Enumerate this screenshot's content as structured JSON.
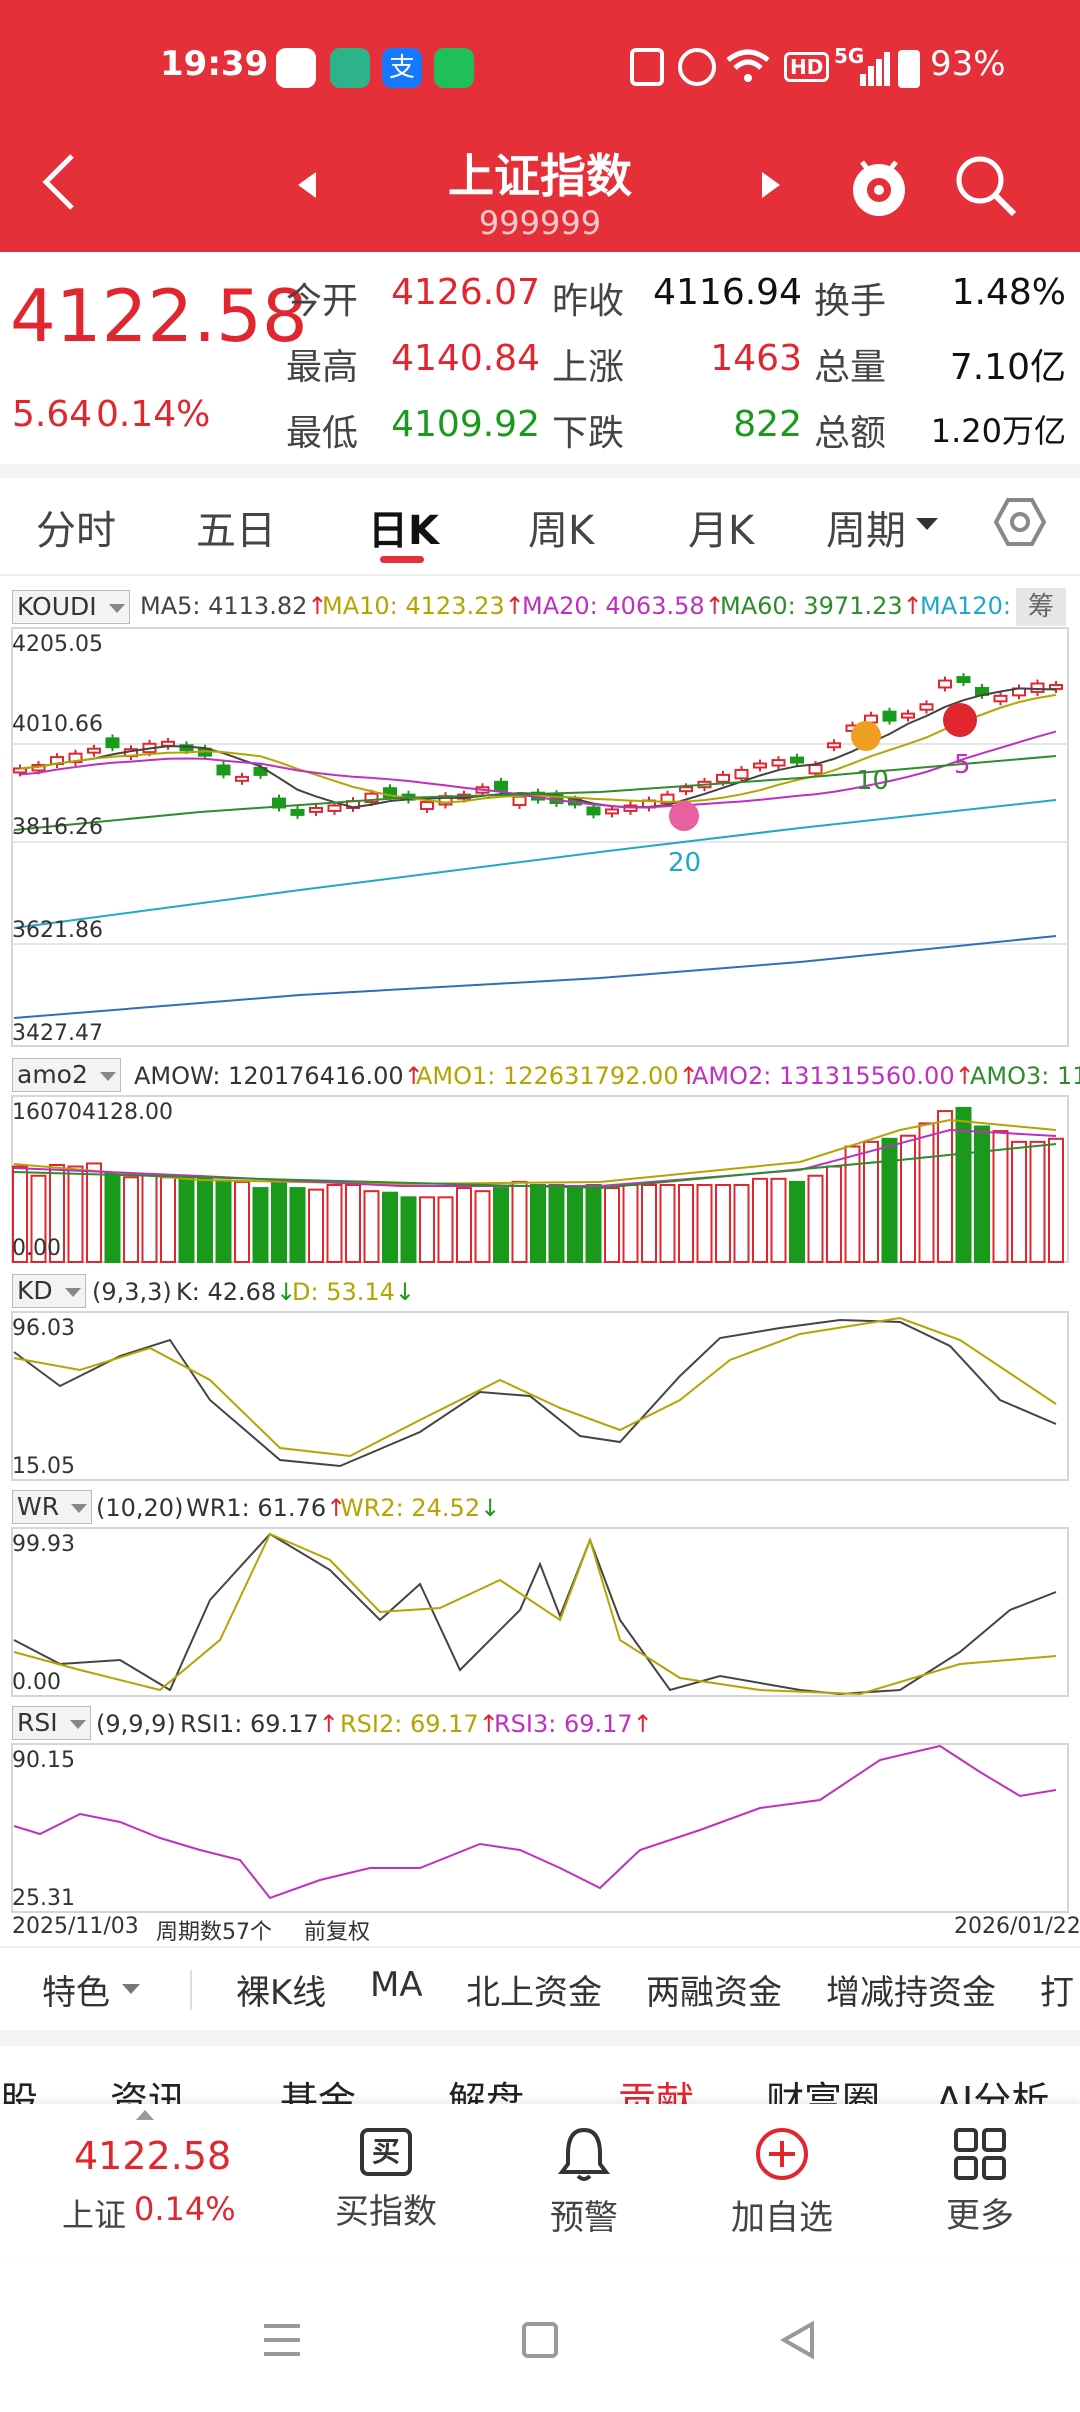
{
  "status_bar": {
    "time": "19:39",
    "battery": "93%",
    "network": "5G",
    "hd": "HD"
  },
  "header": {
    "title": "上证指数",
    "code": "999999"
  },
  "quote": {
    "price": "4122.58",
    "change": "5.64",
    "change_pct": "0.14%",
    "rows": [
      {
        "l1": "今开",
        "v1": "4126.07",
        "l2": "昨收",
        "v2": "4116.94",
        "l3": "换手",
        "v3": "1.48%"
      },
      {
        "l1": "最高",
        "v1": "4140.84",
        "l2": "上涨",
        "v2": "1463",
        "l3": "总量",
        "v3": "7.10亿"
      },
      {
        "l1": "最低",
        "v1": "4109.92",
        "l2": "下跌",
        "v2": "822",
        "l3": "总额",
        "v3": "1.20万亿"
      }
    ]
  },
  "period_tabs": [
    "分时",
    "五日",
    "日K",
    "周K",
    "月K",
    "周期"
  ],
  "main_chart": {
    "indicator": "KOUDI",
    "ma": [
      {
        "label": "MA5: 4113.82",
        "color": "#444444"
      },
      {
        "label": "MA10: 4123.23",
        "color": "#b5a400"
      },
      {
        "label": "MA20: 4063.58",
        "color": "#c030c0"
      },
      {
        "label": "MA60: 3971.23",
        "color": "#2e8b2e"
      },
      {
        "label": "MA120:",
        "color": "#20a8c8"
      }
    ],
    "side_label": "筹",
    "y_ticks": [
      "4205.05",
      "4010.66",
      "3816.26",
      "3621.86",
      "3427.47"
    ],
    "markers": [
      "20",
      "10",
      "5"
    ]
  },
  "volume_panel": {
    "indicator": "amo2",
    "items": [
      {
        "label": "AMOW: 120176416.00",
        "color": "#333333"
      },
      {
        "label": "AMO1: 122631792.00",
        "color": "#b5a400"
      },
      {
        "label": "AMO2: 131315560.00",
        "color": "#c030c0"
      },
      {
        "label": "AMO3: 11",
        "color": "#2e8b2e"
      }
    ],
    "y_top": "160704128.00",
    "y_bottom": "0.00"
  },
  "kd_panel": {
    "indicator": "KD",
    "params": "(9,3,3)",
    "k": "K: 42.68",
    "d": "D: 53.14",
    "y_top": "96.03",
    "y_bottom": "15.05"
  },
  "wr_panel": {
    "indicator": "WR",
    "params": "(10,20)",
    "wr1": "WR1: 61.76",
    "wr2": "WR2: 24.52",
    "y_top": "99.93",
    "y_bottom": "0.00"
  },
  "rsi_panel": {
    "indicator": "RSI",
    "params": "(9,9,9)",
    "rsi1": "RSI1: 69.17",
    "rsi2": "RSI2: 69.17",
    "rsi3": "RSI3: 69.17",
    "y_top": "90.15",
    "y_bottom": "25.31"
  },
  "footer_info": {
    "start_date": "2025/11/03",
    "period_count": "周期数57个",
    "adjust": "前复权",
    "end_date": "2026/01/22"
  },
  "feature_tabs": [
    "特色",
    "裸K线",
    "MA",
    "北上资金",
    "两融资金",
    "增减持资金",
    "打"
  ],
  "news_tabs": [
    "股",
    "资讯",
    "基金",
    "解盘",
    "贡献",
    "财富圈",
    "AI分析"
  ],
  "bottom_bar": {
    "price": "4122.58",
    "name": "上证",
    "pct": "0.14%",
    "buttons": [
      {
        "label": "买指数",
        "icon": "buy-icon"
      },
      {
        "label": "预警",
        "icon": "bell-icon"
      },
      {
        "label": "加自选",
        "icon": "plus-circle-icon"
      },
      {
        "label": "更多",
        "icon": "grid-icon"
      }
    ]
  },
  "colors": {
    "brand_red": "#e5303a",
    "up": "#e0262e",
    "down": "#1a9a1a"
  }
}
